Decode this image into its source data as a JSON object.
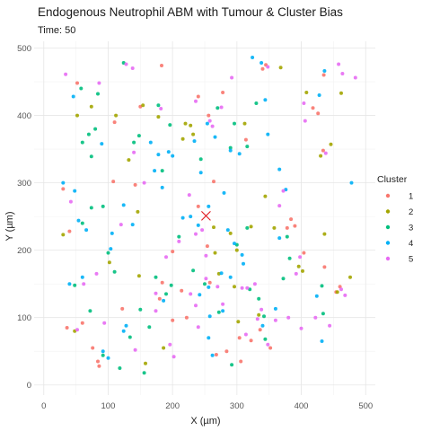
{
  "chart_data": {
    "type": "scatter",
    "title": "Endogenous Neutrophil ABM with Tumour & Cluster Bias",
    "subtitle": "Time: 50",
    "xlabel": "X (µm)",
    "ylabel": "Y (µm)",
    "xlim": [
      -15,
      515
    ],
    "ylim": [
      -15,
      510
    ],
    "x_ticks": [
      0,
      100,
      200,
      300,
      400,
      500
    ],
    "y_ticks": [
      0,
      100,
      200,
      300,
      400,
      500
    ],
    "grid": true,
    "legend": {
      "title": "Cluster",
      "position": "right"
    },
    "tumour": {
      "x": 252,
      "y": 251,
      "marker": "x",
      "color": "#e0181e"
    },
    "series": [
      {
        "name": "1",
        "color": "#f8766d",
        "points": [
          [
            52,
            448
          ],
          [
            183,
            474
          ],
          [
            278,
            434
          ],
          [
            340,
            469
          ],
          [
            345,
            475
          ],
          [
            435,
            460
          ],
          [
            110,
            390
          ],
          [
            150,
            413
          ],
          [
            240,
            428
          ],
          [
            256,
            400
          ],
          [
            426,
            403
          ],
          [
            30,
            291
          ],
          [
            40,
            228
          ],
          [
            108,
            302
          ],
          [
            142,
            297
          ],
          [
            184,
            152
          ],
          [
            200,
            198
          ],
          [
            214,
            140
          ],
          [
            222,
            100
          ],
          [
            240,
            265
          ],
          [
            254,
            206
          ],
          [
            264,
            302
          ],
          [
            314,
            364
          ],
          [
            378,
            233
          ],
          [
            404,
            196
          ],
          [
            436,
            175
          ],
          [
            454,
            138
          ],
          [
            36,
            85
          ],
          [
            60,
            92
          ],
          [
            76,
            55
          ],
          [
            84,
            35
          ],
          [
            86,
            28
          ],
          [
            122,
            113
          ],
          [
            180,
            128
          ],
          [
            200,
            96
          ],
          [
            258,
            152
          ],
          [
            268,
            45
          ],
          [
            284,
            50
          ],
          [
            306,
            35
          ],
          [
            304,
            70
          ],
          [
            322,
            66
          ],
          [
            336,
            82
          ],
          [
            352,
            55
          ],
          [
            384,
            246
          ],
          [
            390,
            236
          ],
          [
            418,
            411
          ],
          [
            434,
            348
          ],
          [
            460,
            146
          ]
        ]
      },
      {
        "name": "2",
        "color": "#a3a500",
        "points": [
          [
            52,
            400
          ],
          [
            74,
            413
          ],
          [
            112,
            400
          ],
          [
            154,
            415
          ],
          [
            178,
            398
          ],
          [
            216,
            365
          ],
          [
            228,
            385
          ],
          [
            232,
            372
          ],
          [
            220,
            388
          ],
          [
            312,
            388
          ],
          [
            368,
            471
          ],
          [
            408,
            434
          ],
          [
            446,
            357
          ],
          [
            462,
            433
          ],
          [
            30,
            223
          ],
          [
            48,
            80
          ],
          [
            102,
            182
          ],
          [
            132,
            334
          ],
          [
            146,
            257
          ],
          [
            148,
            162
          ],
          [
            158,
            32
          ],
          [
            186,
            55
          ],
          [
            264,
            234
          ],
          [
            266,
            196
          ],
          [
            272,
            165
          ],
          [
            290,
            225
          ],
          [
            296,
            146
          ],
          [
            300,
            200
          ],
          [
            322,
            235
          ],
          [
            344,
            280
          ],
          [
            358,
            233
          ],
          [
            396,
            176
          ],
          [
            402,
            169
          ],
          [
            430,
            340
          ],
          [
            436,
            224
          ],
          [
            456,
            138
          ],
          [
            476,
            160
          ],
          [
            334,
            104
          ],
          [
            302,
            94
          ]
        ]
      },
      {
        "name": "3",
        "color": "#00bf7d",
        "points": [
          [
            58,
            440
          ],
          [
            80,
            380
          ],
          [
            84,
            432
          ],
          [
            124,
            478
          ],
          [
            178,
            415
          ],
          [
            196,
            386
          ],
          [
            60,
            360
          ],
          [
            74,
            339
          ],
          [
            70,
            372
          ],
          [
            184,
            318
          ],
          [
            148,
            370
          ],
          [
            244,
            335
          ],
          [
            270,
            411
          ],
          [
            290,
            352
          ],
          [
            296,
            388
          ],
          [
            316,
            354
          ],
          [
            330,
            418
          ],
          [
            378,
            220
          ],
          [
            382,
            188
          ],
          [
            48,
            148
          ],
          [
            60,
            240
          ],
          [
            74,
            263
          ],
          [
            92,
            265
          ],
          [
            100,
            196
          ],
          [
            110,
            168
          ],
          [
            140,
            360
          ],
          [
            150,
            112
          ],
          [
            164,
            86
          ],
          [
            174,
            160
          ],
          [
            190,
            135
          ],
          [
            198,
            148
          ],
          [
            210,
            220
          ],
          [
            232,
            170
          ],
          [
            250,
            150
          ],
          [
            272,
            108
          ],
          [
            300,
            208
          ],
          [
            316,
            233
          ],
          [
            320,
            142
          ],
          [
            334,
            128
          ],
          [
            342,
            102
          ],
          [
            372,
            158
          ],
          [
            344,
            68
          ],
          [
            72,
            110
          ],
          [
            92,
            44
          ],
          [
            118,
            25
          ],
          [
            134,
            71
          ],
          [
            156,
            18
          ],
          [
            292,
            30
          ],
          [
            432,
            147
          ],
          [
            434,
            106
          ]
        ]
      },
      {
        "name": "4",
        "color": "#00b0f6",
        "points": [
          [
            46,
            428
          ],
          [
            30,
            300
          ],
          [
            48,
            288
          ],
          [
            54,
            244
          ],
          [
            66,
            230
          ],
          [
            104,
            202
          ],
          [
            90,
            358
          ],
          [
            124,
            267
          ],
          [
            138,
            238
          ],
          [
            166,
            360
          ],
          [
            178,
            342
          ],
          [
            172,
            318
          ],
          [
            184,
            293
          ],
          [
            194,
            346
          ],
          [
            200,
            340
          ],
          [
            234,
            362
          ],
          [
            254,
            388
          ],
          [
            266,
            368
          ],
          [
            280,
            285
          ],
          [
            290,
            348
          ],
          [
            304,
            343
          ],
          [
            324,
            486
          ],
          [
            338,
            478
          ],
          [
            344,
            423
          ],
          [
            348,
            372
          ],
          [
            366,
            320
          ],
          [
            376,
            290
          ],
          [
            428,
            430
          ],
          [
            436,
            466
          ],
          [
            478,
            300
          ],
          [
            216,
            248
          ],
          [
            228,
            250
          ],
          [
            240,
            237
          ],
          [
            244,
            315
          ],
          [
            256,
            265
          ],
          [
            276,
            166
          ],
          [
            286,
            230
          ],
          [
            290,
            160
          ],
          [
            242,
            134
          ],
          [
            256,
            145
          ],
          [
            278,
            110
          ],
          [
            308,
            193
          ],
          [
            60,
            160
          ],
          [
            40,
            150
          ],
          [
            106,
            225
          ],
          [
            92,
            50
          ],
          [
            100,
            40
          ],
          [
            124,
            80
          ],
          [
            128,
            88
          ],
          [
            186,
            125
          ],
          [
            258,
            102
          ],
          [
            256,
            70
          ],
          [
            262,
            44
          ],
          [
            296,
            210
          ],
          [
            310,
            180
          ],
          [
            340,
            88
          ],
          [
            360,
            113
          ],
          [
            424,
            132
          ],
          [
            432,
            65
          ],
          [
            366,
            218
          ]
        ]
      },
      {
        "name": "5",
        "color": "#e76bf3",
        "points": [
          [
            34,
            461
          ],
          [
            86,
            448
          ],
          [
            128,
            476
          ],
          [
            138,
            470
          ],
          [
            182,
            410
          ],
          [
            226,
            282
          ],
          [
            236,
            421
          ],
          [
            258,
            392
          ],
          [
            262,
            384
          ],
          [
            276,
            412
          ],
          [
            292,
            456
          ],
          [
            348,
            472
          ],
          [
            406,
            392
          ],
          [
            404,
            418
          ],
          [
            438,
            344
          ],
          [
            458,
            476
          ],
          [
            464,
            462
          ],
          [
            484,
            456
          ],
          [
            62,
            150
          ],
          [
            82,
            165
          ],
          [
            120,
            238
          ],
          [
            140,
            345
          ],
          [
            156,
            300
          ],
          [
            174,
            136
          ],
          [
            190,
            190
          ],
          [
            210,
            213
          ],
          [
            236,
            224
          ],
          [
            246,
            230
          ],
          [
            252,
            192
          ],
          [
            252,
            158
          ],
          [
            270,
            146
          ],
          [
            278,
            120
          ],
          [
            308,
            144
          ],
          [
            316,
            144
          ],
          [
            328,
            150
          ],
          [
            332,
            98
          ],
          [
            338,
            112
          ],
          [
            366,
            266
          ],
          [
            372,
            288
          ],
          [
            392,
            165
          ],
          [
            398,
            190
          ],
          [
            462,
            142
          ],
          [
            468,
            133
          ],
          [
            42,
            272
          ],
          [
            52,
            82
          ],
          [
            94,
            92
          ],
          [
            142,
            52
          ],
          [
            174,
            110
          ],
          [
            196,
            60
          ],
          [
            202,
            42
          ],
          [
            228,
            135
          ],
          [
            236,
            118
          ],
          [
            240,
            86
          ],
          [
            314,
            75
          ],
          [
            348,
            60
          ],
          [
            360,
            96
          ],
          [
            380,
            100
          ],
          [
            400,
            84
          ],
          [
            422,
            100
          ],
          [
            444,
            88
          ]
        ]
      }
    ]
  }
}
